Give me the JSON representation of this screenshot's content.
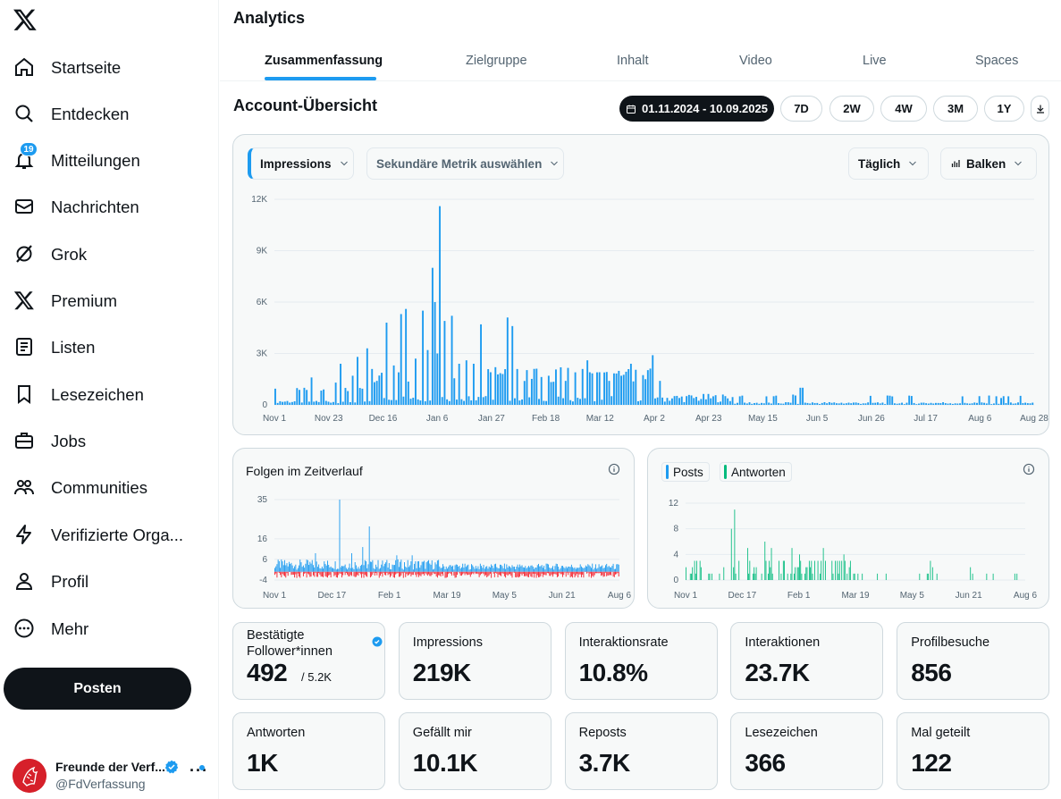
{
  "sidebar": {
    "items": [
      {
        "label": "Startseite",
        "icon": "home-icon"
      },
      {
        "label": "Entdecken",
        "icon": "search-icon"
      },
      {
        "label": "Mitteilungen",
        "icon": "bell-icon",
        "badge": "19"
      },
      {
        "label": "Nachrichten",
        "icon": "mail-icon"
      },
      {
        "label": "Grok",
        "icon": "grok-icon"
      },
      {
        "label": "Premium",
        "icon": "x-logo-icon"
      },
      {
        "label": "Listen",
        "icon": "list-icon"
      },
      {
        "label": "Lesezeichen",
        "icon": "bookmark-icon"
      },
      {
        "label": "Jobs",
        "icon": "briefcase-icon"
      },
      {
        "label": "Communities",
        "icon": "people-icon"
      },
      {
        "label": "Verifizierte Orga...",
        "icon": "lightning-icon"
      },
      {
        "label": "Profil",
        "icon": "person-icon"
      },
      {
        "label": "Mehr",
        "icon": "more-circle-icon"
      }
    ],
    "post_label": "Posten",
    "account": {
      "name": "Freunde der Verf...",
      "handle": "@FdVerfassung"
    }
  },
  "header": {
    "title": "Analytics"
  },
  "tabs": [
    "Zusammenfassung",
    "Zielgruppe",
    "Inhalt",
    "Video",
    "Live",
    "Spaces"
  ],
  "overview": {
    "title": "Account-Übersicht",
    "date_range": "01.11.2024 - 10.09.2025",
    "ranges": [
      "7D",
      "2W",
      "4W",
      "3M",
      "1Y"
    ]
  },
  "main_chart": {
    "metric": "Impressions",
    "secondary": "Sekundäre Metrik auswählen",
    "interval": "Täglich",
    "chart_kind": "Balken"
  },
  "follow_chart": {
    "title": "Folgen im Zeitverlauf"
  },
  "content_chart": {
    "legend": [
      "Posts",
      "Antworten"
    ]
  },
  "stats": [
    {
      "label": "Bestätigte Follower*innen",
      "value": "492",
      "sub": "/ 5.2K"
    },
    {
      "label": "Impressions",
      "value": "219K"
    },
    {
      "label": "Interaktionsrate",
      "value": "10.8%"
    },
    {
      "label": "Interaktionen",
      "value": "23.7K"
    },
    {
      "label": "Profilbesuche",
      "value": "856"
    },
    {
      "label": "Antworten",
      "value": "1K"
    },
    {
      "label": "Gefällt mir",
      "value": "10.1K"
    },
    {
      "label": "Reposts",
      "value": "3.7K"
    },
    {
      "label": "Lesezeichen",
      "value": "366"
    },
    {
      "label": "Mal geteilt",
      "value": "122"
    }
  ],
  "colors": {
    "accent": "#1d9bf0",
    "negative": "#f4212e",
    "posts": "#1d9bf0",
    "replies": "#00ba7c"
  },
  "chart_data": [
    {
      "type": "bar",
      "ylabel": "",
      "y_ticks": [
        "0",
        "3K",
        "6K",
        "9K",
        "12K"
      ],
      "ylim": [
        0,
        12000
      ],
      "x_ticks": [
        "Nov 1",
        "Nov 23",
        "Dec 16",
        "Jan 6",
        "Jan 27",
        "Feb 18",
        "Mar 12",
        "Apr 2",
        "Apr 23",
        "May 15",
        "Jun 5",
        "Jun 26",
        "Jul 17",
        "Aug 6",
        "Aug 28"
      ],
      "x_start": "2024-11-01",
      "x_end": "2025-09-10",
      "series": [
        {
          "peaks": [
            [
              "2024-11-16",
              1600
            ],
            [
              "2024-11-21",
              900
            ],
            [
              "2024-11-26",
              1300
            ],
            [
              "2024-11-28",
              2400
            ],
            [
              "2024-12-03",
              1700
            ],
            [
              "2024-12-05",
              2800
            ],
            [
              "2024-12-09",
              3300
            ],
            [
              "2024-12-13",
              1400
            ],
            [
              "2024-12-17",
              4800
            ],
            [
              "2024-12-20",
              2300
            ],
            [
              "2024-12-23",
              5300
            ],
            [
              "2024-12-25",
              5600
            ],
            [
              "2024-12-29",
              2700
            ],
            [
              "2025-01-01",
              5500
            ],
            [
              "2025-01-03",
              3200
            ],
            [
              "2025-01-05",
              8000
            ],
            [
              "2025-01-06",
              6000
            ],
            [
              "2025-01-07",
              3000
            ],
            [
              "2025-01-08",
              11600
            ],
            [
              "2025-01-10",
              4900
            ],
            [
              "2025-01-13",
              5200
            ],
            [
              "2025-01-16",
              2400
            ],
            [
              "2025-01-19",
              2600
            ],
            [
              "2025-01-22",
              2400
            ],
            [
              "2025-01-25",
              4700
            ],
            [
              "2025-01-31",
              2200
            ],
            [
              "2025-02-05",
              5100
            ],
            [
              "2025-02-07",
              4600
            ],
            [
              "2025-02-16",
              2100
            ],
            [
              "2025-02-22",
              1700
            ],
            [
              "2025-03-01",
              1400
            ],
            [
              "2025-03-05",
              1900
            ],
            [
              "2025-03-10",
              2600
            ],
            [
              "2025-03-14",
              1900
            ],
            [
              "2025-03-19",
              1400
            ],
            [
              "2025-03-24",
              1700
            ],
            [
              "2025-03-28",
              2400
            ],
            [
              "2025-04-03",
              1500
            ],
            [
              "2025-04-06",
              2900
            ],
            [
              "2025-04-09",
              1400
            ],
            [
              "2025-06-06",
              1000
            ],
            [
              "2025-06-07",
              1000
            ],
            [
              "2025-06-03",
              600
            ],
            [
              "2025-05-12",
              500
            ],
            [
              "2025-08-28",
              400
            ],
            [
              "2025-08-31",
              500
            ]
          ],
          "baseline": 200
        }
      ]
    },
    {
      "type": "bar",
      "y_ticks": [
        "-4",
        "6",
        "16",
        "35"
      ],
      "x_ticks": [
        "Nov 1",
        "Dec 17",
        "Feb 1",
        "Mar 19",
        "May 5",
        "Jun 21",
        "Aug 6"
      ],
      "x_start": "2024-11-01",
      "x_end": "2025-09-10",
      "series": [
        {
          "peaks": [
            [
              "2024-12-30",
              35
            ],
            [
              "2025-01-26",
              22
            ],
            [
              "2025-01-20",
              12
            ],
            [
              "2024-12-08",
              9
            ],
            [
              "2025-01-10",
              9
            ],
            [
              "2025-02-20",
              8
            ],
            [
              "2025-03-06",
              8
            ]
          ],
          "typical": [
            1,
            6
          ]
        },
        {
          "typical": [
            -3,
            0
          ]
        }
      ]
    },
    {
      "type": "bar",
      "y_ticks": [
        "0",
        "4",
        "8",
        "12"
      ],
      "x_ticks": [
        "Nov 1",
        "Dec 17",
        "Feb 1",
        "Mar 19",
        "May 5",
        "Jun 21",
        "Aug 6"
      ],
      "x_start": "2024-11-01",
      "x_end": "2025-09-10",
      "series": [
        {
          "name": "Posts"
        },
        {
          "name": "Antworten",
          "peaks": [
            [
              "2024-12-13",
              8
            ],
            [
              "2024-12-16",
              11
            ],
            [
              "2024-12-28",
              5
            ],
            [
              "2025-01-13",
              6
            ],
            [
              "2025-01-19",
              5
            ],
            [
              "2025-02-07",
              5
            ],
            [
              "2025-02-14",
              4
            ],
            [
              "2025-03-08",
              5
            ],
            [
              "2025-03-27",
              4
            ],
            [
              "2025-06-15",
              3
            ],
            [
              "2025-06-17",
              2
            ],
            [
              "2025-07-22",
              2
            ]
          ]
        }
      ]
    }
  ]
}
